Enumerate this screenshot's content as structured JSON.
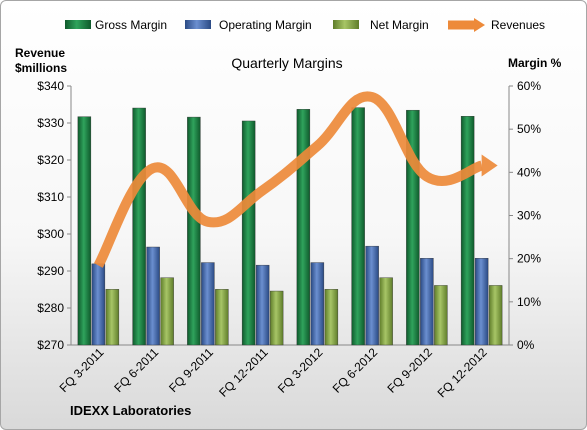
{
  "chart_data": {
    "type": "bar",
    "title": "Quarterly Margins",
    "footer": "IDEXX Laboratories",
    "categories": [
      "FQ 3-2011",
      "FQ 6-2011",
      "FQ 9-2011",
      "FQ 12-2011",
      "FQ 3-2012",
      "FQ 6-2012",
      "FQ 9-2012",
      "FQ 12-2012"
    ],
    "y_left": {
      "label_line1": "Revenue",
      "label_line2": "$millions",
      "ylim": [
        270,
        340
      ],
      "ticks": [
        "$270",
        "$280",
        "$290",
        "$300",
        "$310",
        "$320",
        "$330",
        "$340"
      ]
    },
    "y_right": {
      "label": "Margin %",
      "ylim": [
        0,
        60
      ],
      "ticks": [
        "0%",
        "10%",
        "20%",
        "30%",
        "40%",
        "50%",
        "60%"
      ]
    },
    "series": [
      {
        "name": "Gross Margin",
        "axis": "right",
        "kind": "bar",
        "color": "#1f8a4c",
        "values": [
          52.9,
          54.9,
          52.8,
          51.9,
          54.6,
          55.0,
          54.4,
          53.0
        ]
      },
      {
        "name": "Operating Margin",
        "axis": "right",
        "kind": "bar",
        "color": "#4a6fb3",
        "values": [
          18.8,
          22.7,
          19.1,
          18.5,
          19.1,
          22.9,
          20.1,
          20.1
        ]
      },
      {
        "name": "Net Margin",
        "axis": "right",
        "kind": "bar",
        "color": "#8fb04a",
        "values": [
          12.9,
          15.6,
          12.9,
          12.5,
          12.9,
          15.6,
          13.8,
          13.8
        ]
      },
      {
        "name": "Revenues",
        "axis": "left",
        "kind": "line",
        "color": "#ed8a3a",
        "values": [
          291.5,
          317.8,
          303.3,
          311.8,
          323.8,
          337.0,
          315.5,
          318.5
        ]
      }
    ],
    "legend_position": "top",
    "grid": false
  }
}
